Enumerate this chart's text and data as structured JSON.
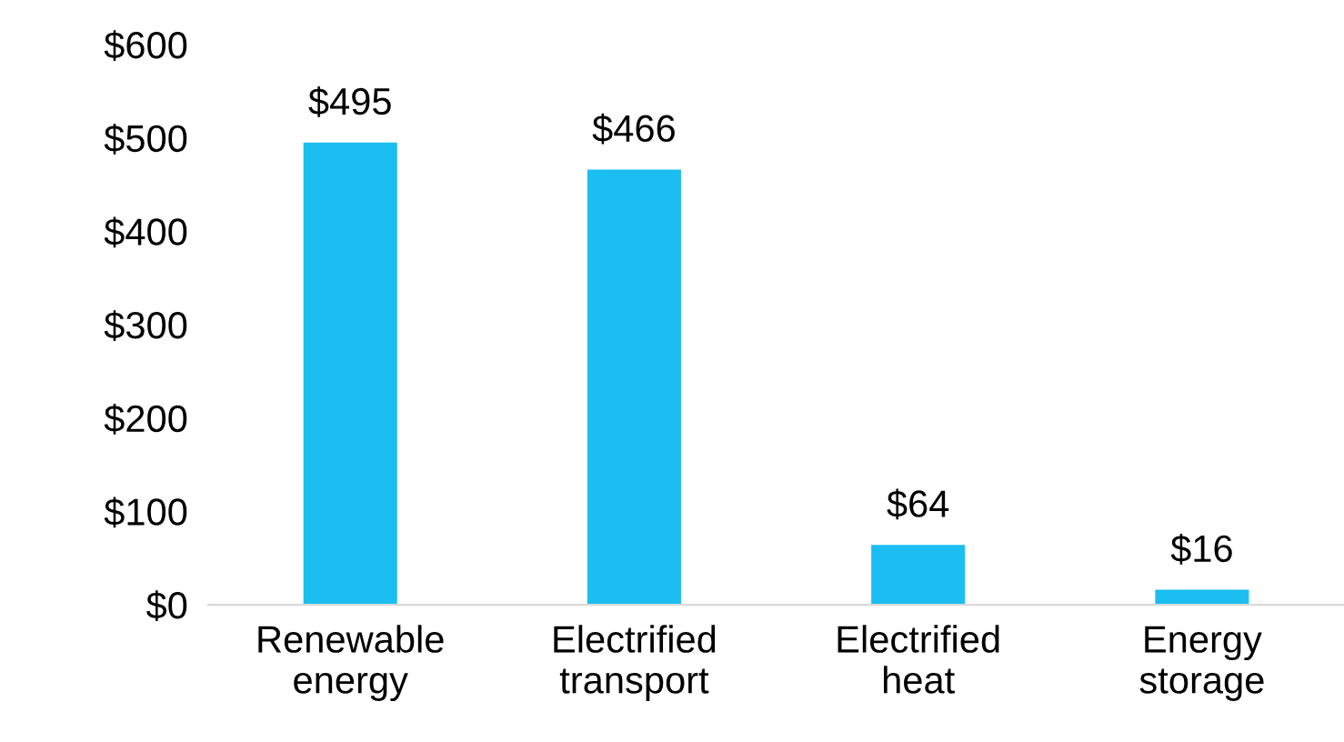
{
  "chart_data": {
    "type": "bar",
    "categories": [
      "Renewable\nenergy",
      "Electrified\ntransport",
      "Electrified\nheat",
      "Energy\nstorage"
    ],
    "values": [
      495,
      466,
      64,
      16
    ],
    "color": "#1abef0",
    "value_labels": [
      "$495",
      "$466",
      "$64",
      "$16"
    ],
    "ylim": [
      0,
      600
    ],
    "yticks": [
      {
        "value": 0,
        "label": "$0"
      },
      {
        "value": 100,
        "label": "$100"
      },
      {
        "value": 200,
        "label": "$200"
      },
      {
        "value": 300,
        "label": "$300"
      },
      {
        "value": 400,
        "label": "$400"
      },
      {
        "value": 500,
        "label": "$500"
      },
      {
        "value": 600,
        "label": "$600"
      }
    ],
    "grid": false,
    "legend": false
  }
}
